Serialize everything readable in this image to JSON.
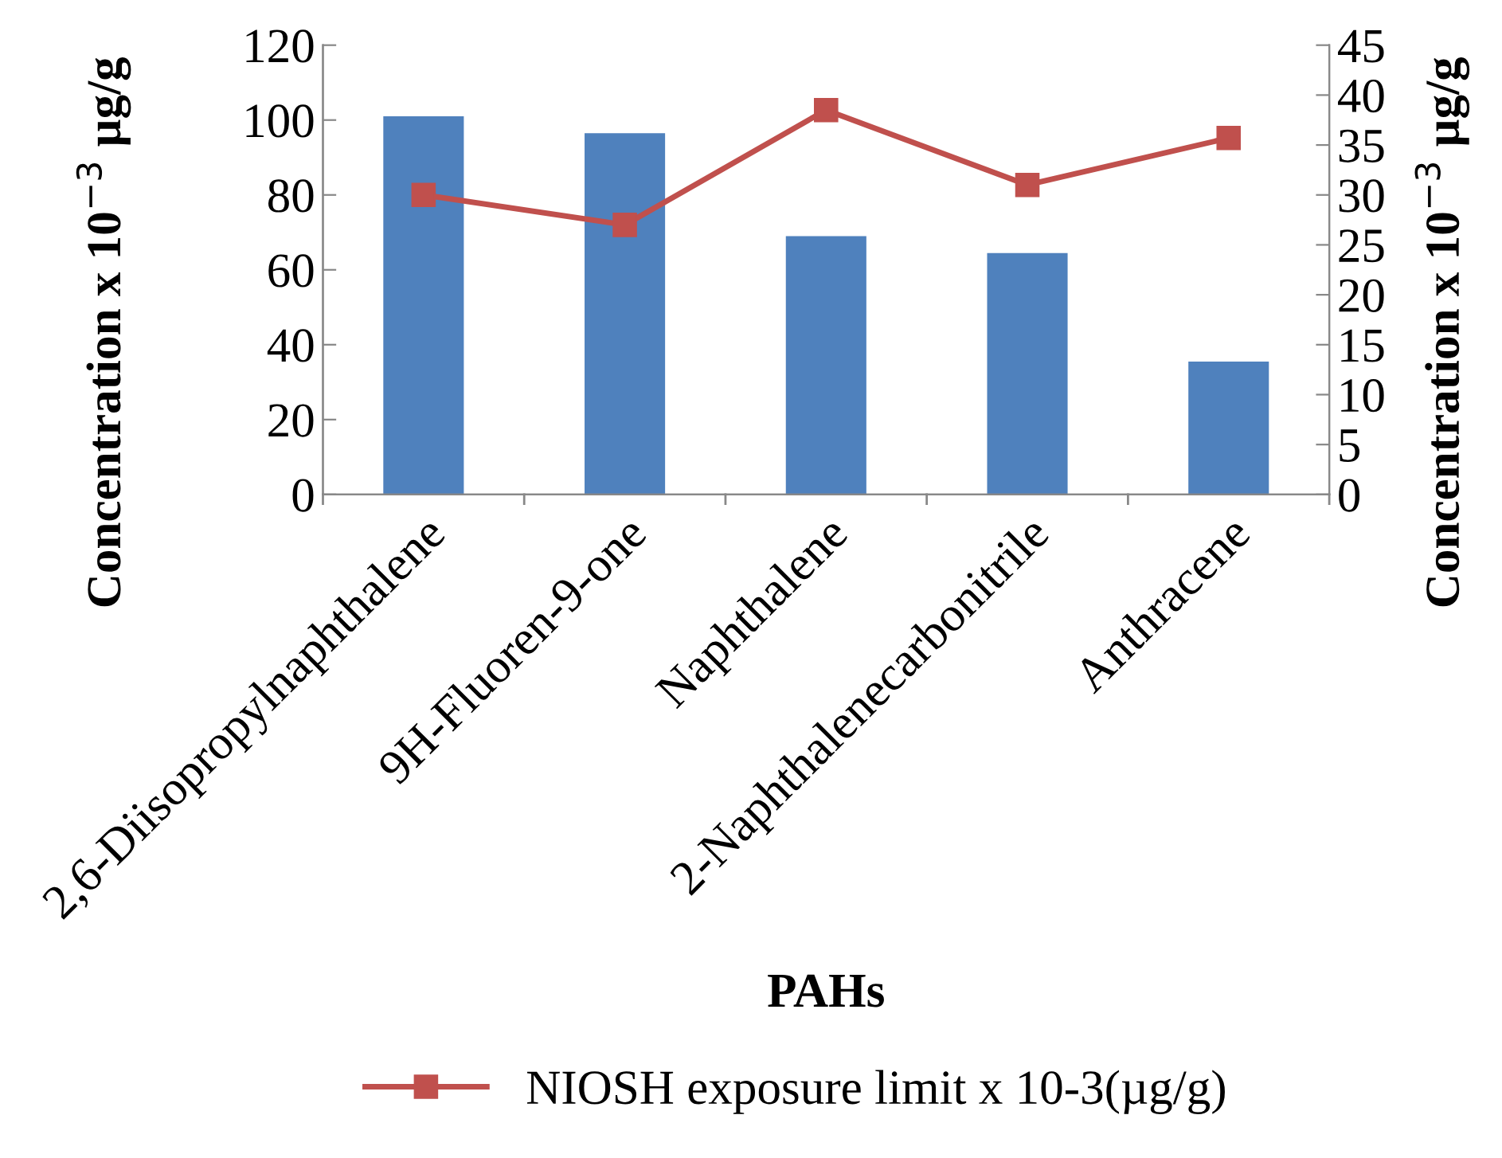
{
  "chart_data": {
    "type": "bar",
    "xlabel": "PAHs",
    "ylabel": "Concentration x 10$^{−3}$ µg/g",
    "y2label": "Concentration x 10$^{−3}$ µg/g",
    "categories": [
      "2,6-Diisopropylnaphthalene",
      "9H-Fluoren-9-one",
      "Naphthalene",
      "2-Naphthalenecarbonitrile",
      "Anthracene"
    ],
    "series": [
      {
        "color": "#4f81bd",
        "values": [
          101,
          96.5,
          69,
          64.5,
          35.5
        ]
      },
      {
        "name": "NIOSH exposure limit x 10-3(µg/g)",
        "type": "line",
        "axis": "y2",
        "color": "#c0504d",
        "marker": "square",
        "values": [
          30,
          27,
          38.5,
          31,
          35.7
        ]
      }
    ],
    "ylim": [
      0,
      120
    ],
    "yticks": [
      0,
      20,
      40,
      60,
      80,
      100,
      120
    ],
    "y2lim": [
      0,
      45
    ],
    "y2ticks": [
      0,
      5,
      10,
      15,
      20,
      25,
      30,
      35,
      40,
      45
    ],
    "legend": "bottom",
    "grid": false
  }
}
